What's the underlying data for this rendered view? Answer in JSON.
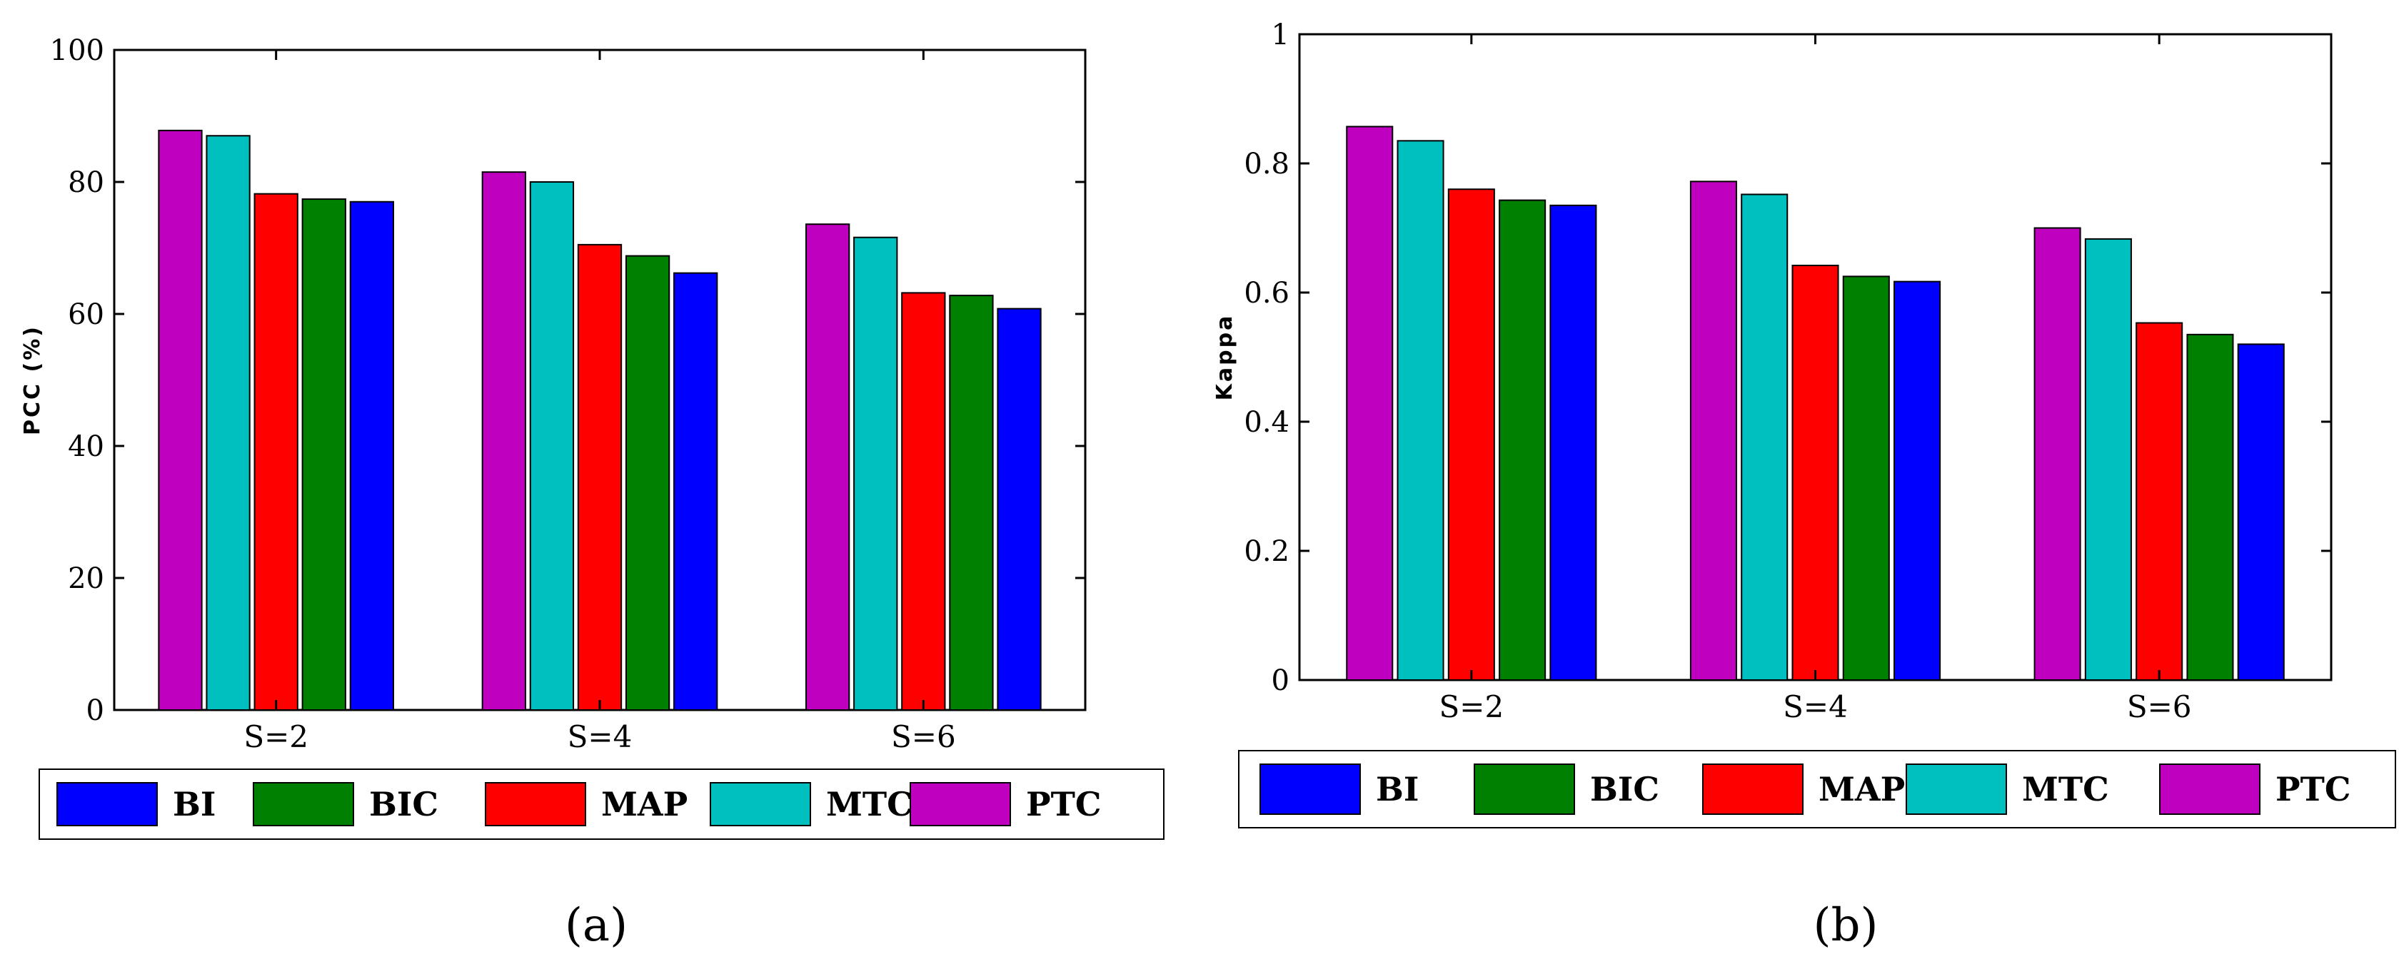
{
  "chart_data": [
    {
      "type": "bar",
      "caption": "(a)",
      "ylabel": "PCC (%)",
      "xlabel": "",
      "ylim": [
        0,
        100
      ],
      "yticks": [
        "0",
        "20",
        "40",
        "60",
        "80",
        "100"
      ],
      "categories": [
        "S=2",
        "S=4",
        "S=6"
      ],
      "series": [
        {
          "name": "PTC",
          "color": "#bf00bf",
          "values": [
            87.8,
            81.5,
            73.6
          ]
        },
        {
          "name": "MTC",
          "color": "#00bfbf",
          "values": [
            87.0,
            80.0,
            71.6
          ]
        },
        {
          "name": "MAP",
          "color": "#ff0000",
          "values": [
            78.2,
            70.5,
            63.2
          ]
        },
        {
          "name": "BIC",
          "color": "#008000",
          "values": [
            77.4,
            68.8,
            62.8
          ]
        },
        {
          "name": "BI",
          "color": "#0000ff",
          "values": [
            77.0,
            66.2,
            60.8
          ]
        }
      ],
      "legend": [
        {
          "name": "BI",
          "color": "#0000ff"
        },
        {
          "name": "BIC",
          "color": "#008000"
        },
        {
          "name": "MAP",
          "color": "#ff0000"
        },
        {
          "name": "MTC",
          "color": "#00bfbf"
        },
        {
          "name": "PTC",
          "color": "#bf00bf"
        }
      ]
    },
    {
      "type": "bar",
      "caption": "(b)",
      "ylabel": "Kappa",
      "xlabel": "",
      "ylim": [
        0,
        1
      ],
      "yticks": [
        "0",
        "0.2",
        "0.4",
        "0.6",
        "0.8",
        "1"
      ],
      "categories": [
        "S=2",
        "S=4",
        "S=6"
      ],
      "series": [
        {
          "name": "PTC",
          "color": "#bf00bf",
          "values": [
            0.857,
            0.772,
            0.7
          ]
        },
        {
          "name": "MTC",
          "color": "#00bfbf",
          "values": [
            0.835,
            0.752,
            0.683
          ]
        },
        {
          "name": "MAP",
          "color": "#ff0000",
          "values": [
            0.76,
            0.642,
            0.553
          ]
        },
        {
          "name": "BIC",
          "color": "#008000",
          "values": [
            0.743,
            0.625,
            0.535
          ]
        },
        {
          "name": "BI",
          "color": "#0000ff",
          "values": [
            0.735,
            0.617,
            0.52
          ]
        }
      ],
      "legend": [
        {
          "name": "BI",
          "color": "#0000ff"
        },
        {
          "name": "BIC",
          "color": "#008000"
        },
        {
          "name": "MAP",
          "color": "#ff0000"
        },
        {
          "name": "MTC",
          "color": "#00bfbf"
        },
        {
          "name": "PTC",
          "color": "#bf00bf"
        }
      ]
    }
  ]
}
